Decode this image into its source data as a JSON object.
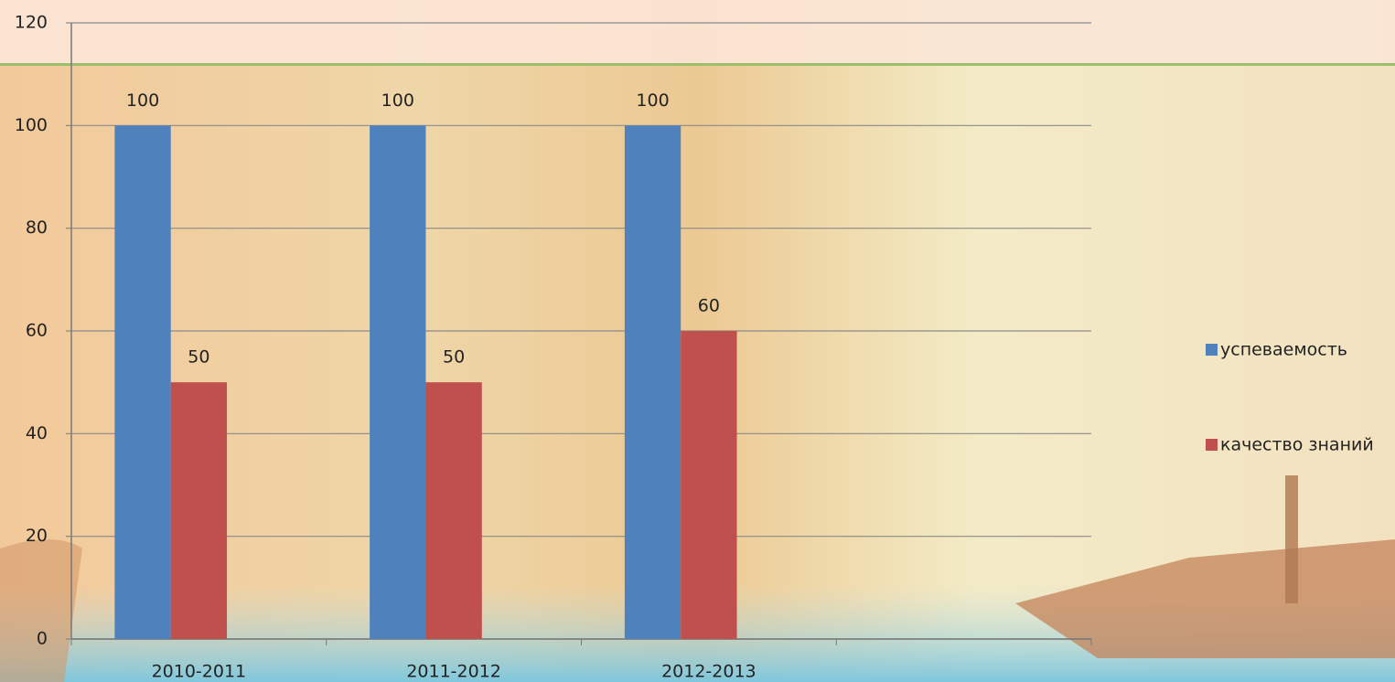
{
  "chart_data": {
    "type": "bar",
    "categories": [
      "2010-2011",
      "2011-2012",
      "2012-2013",
      null
    ],
    "series": [
      {
        "name": "успеваемость",
        "color": "#4f81bd",
        "values": [
          100,
          100,
          100,
          null
        ]
      },
      {
        "name": "качество знаний",
        "color": "#c0504d",
        "values": [
          50,
          50,
          60,
          null
        ]
      }
    ],
    "ylim": [
      0,
      120
    ],
    "yticks": [
      0,
      20,
      40,
      60,
      80,
      100,
      120
    ],
    "grid": true,
    "legend": "right"
  }
}
